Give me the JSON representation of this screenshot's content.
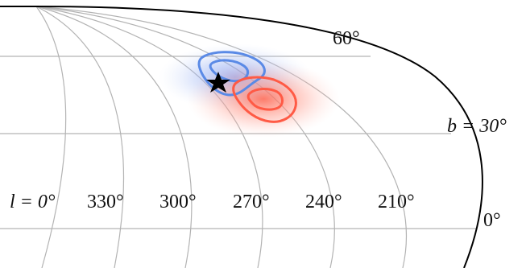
{
  "map": {
    "projection": "all-sky (Mollweide-style), upper-right quadrant shown",
    "boundary_color": "#000000",
    "grid_color": "#b3b3b3"
  },
  "labels": {
    "lon_prefix": "l = 0°",
    "lon_330": "330°",
    "lon_300": "300°",
    "lon_270": "270°",
    "lon_240": "240°",
    "lon_210": "210°",
    "lat_60": "60°",
    "lat_30": "b = 30°",
    "lat_0": "0°"
  },
  "overlays": {
    "blue_contours": {
      "color": "#5a8ae6",
      "fill": "#8fb0f0"
    },
    "red_contours": {
      "color": "#ff5a45",
      "fill": "#ff9a8a"
    },
    "marker": {
      "symbol": "star",
      "color": "#000000"
    }
  }
}
